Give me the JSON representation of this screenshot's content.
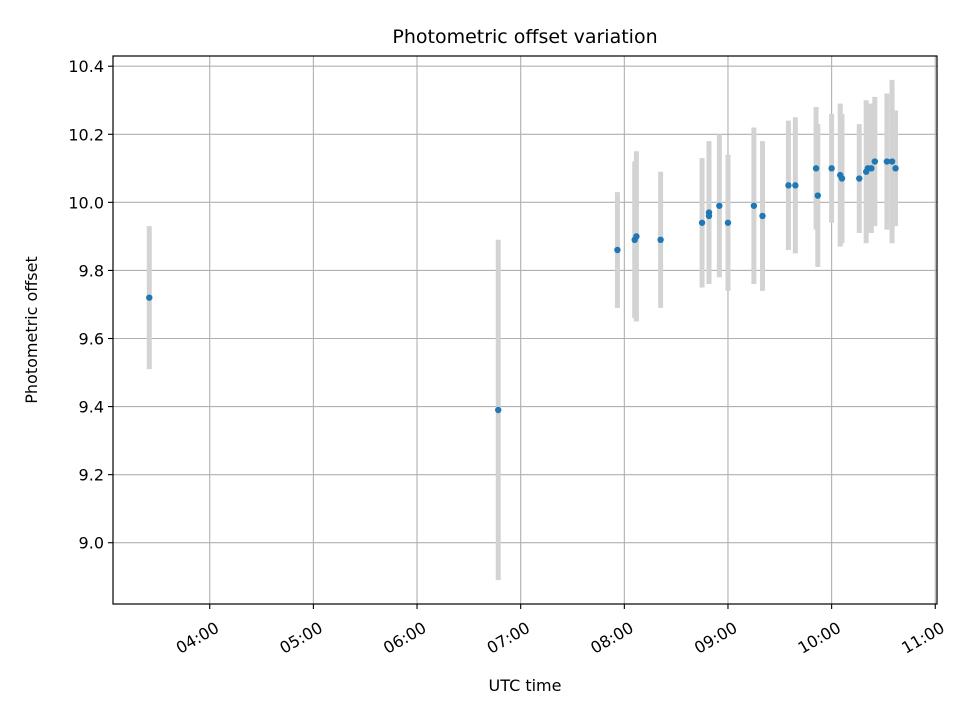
{
  "chart_data": {
    "type": "scatter",
    "title": "Photometric offset variation",
    "xlabel": "UTC time",
    "ylabel": "Photometric offset",
    "x_tick_labels": [
      "04:00",
      "05:00",
      "06:00",
      "07:00",
      "08:00",
      "09:00",
      "10:00",
      "11:00"
    ],
    "y_tick_labels": [
      "9.0",
      "9.2",
      "9.4",
      "9.6",
      "9.8",
      "10.0",
      "10.2",
      "10.4"
    ],
    "xlim": [
      "03:04",
      "11:01"
    ],
    "ylim": [
      8.82,
      10.43
    ],
    "grid": true,
    "marker_color": "#1f77b4",
    "errorbar_color": "#d3d3d3",
    "series": [
      {
        "x": [
          "03:25",
          "06:47",
          "07:56",
          "08:06",
          "08:07",
          "08:21",
          "08:45",
          "08:49",
          "08:49",
          "08:55",
          "09:00",
          "09:15",
          "09:20",
          "09:35",
          "09:39",
          "09:51",
          "09:52",
          "10:00",
          "10:05",
          "10:06",
          "10:16",
          "10:20",
          "10:21",
          "10:23",
          "10:25",
          "10:32",
          "10:35",
          "10:37"
        ],
        "y": [
          9.72,
          9.39,
          9.86,
          9.89,
          9.9,
          9.89,
          9.94,
          9.97,
          9.96,
          9.99,
          9.94,
          9.99,
          9.96,
          10.05,
          10.05,
          10.1,
          10.02,
          10.1,
          10.08,
          10.07,
          10.07,
          10.09,
          10.1,
          10.1,
          10.12,
          10.12,
          10.12,
          10.1
        ],
        "err": [
          0.21,
          0.5,
          0.17,
          0.23,
          0.25,
          0.2,
          0.19,
          0.21,
          0.2,
          0.21,
          0.2,
          0.23,
          0.22,
          0.19,
          0.2,
          0.18,
          0.21,
          0.16,
          0.21,
          0.19,
          0.16,
          0.21,
          0.19,
          0.19,
          0.19,
          0.2,
          0.24,
          0.17
        ]
      }
    ]
  }
}
